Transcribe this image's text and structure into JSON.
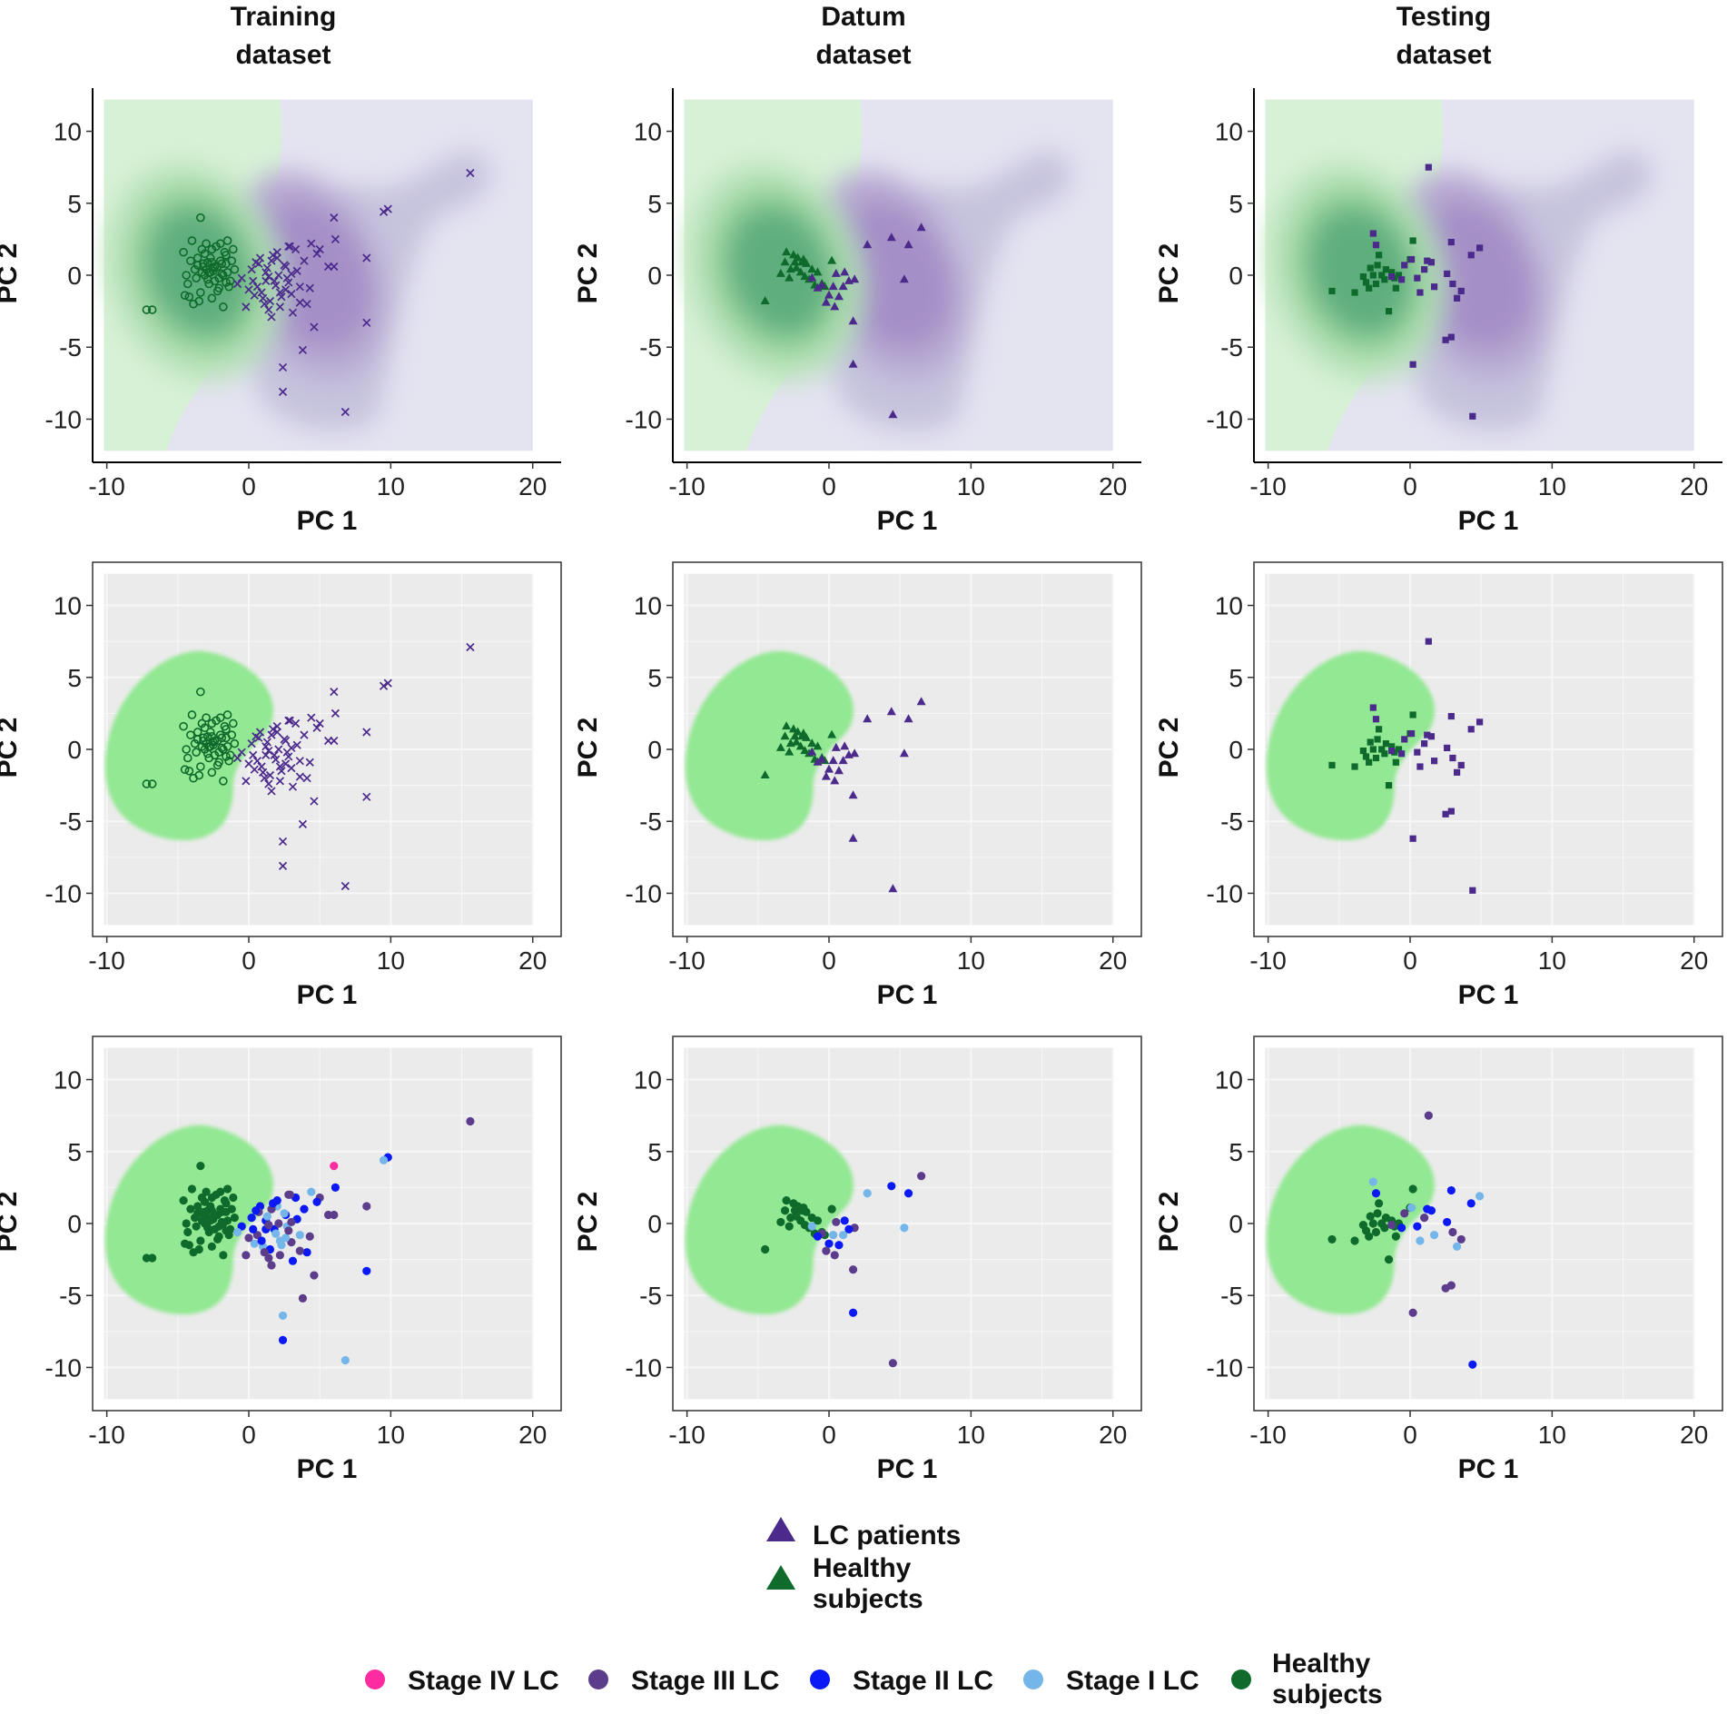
{
  "figure": {
    "columns": [
      "Training",
      "Datum",
      "Testing"
    ],
    "column_subtitle": "dataset",
    "xlabel": "PC 1",
    "ylabel": "PC 2"
  },
  "legend1": {
    "items": [
      {
        "label": "LC patients",
        "color": "#4b2a8c",
        "shape": "triangle"
      },
      {
        "label_lines": [
          "Healthy",
          "subjects"
        ],
        "color": "#0f6b2c",
        "shape": "triangle"
      }
    ]
  },
  "legend2": {
    "items": [
      {
        "label": "Stage IV LC",
        "color": "#ff2ca0"
      },
      {
        "label": "Stage III LC",
        "color": "#5b3d8c"
      },
      {
        "label": "Stage II LC",
        "color": "#0a19f5"
      },
      {
        "label": "Stage I LC",
        "color": "#74b6ea"
      },
      {
        "label_lines": [
          "Healthy",
          "subjects"
        ],
        "color": "#0f6b2c"
      }
    ]
  },
  "colors": {
    "healthy": "#0f6b2c",
    "lc": "#4b2a8c",
    "region_green": "#93e893",
    "region_purple": "#e2e0ee",
    "panel_bg": "#ebebeb"
  },
  "chart_data": [
    {
      "type": "scatter",
      "dataset": "Training",
      "title": "Training dataset",
      "xlabel": "PC 1",
      "ylabel": "PC 2",
      "xlim": [
        -11,
        22
      ],
      "ylim": [
        -13,
        13
      ],
      "xticks": [
        -10,
        0,
        10,
        20
      ],
      "yticks": [
        10,
        5,
        0,
        -5,
        -10
      ],
      "series": [
        {
          "name": "Healthy subjects",
          "marker": "open-circle",
          "x": [
            -7.2,
            -6.8,
            -4.6,
            -4.3,
            -4.0,
            -3.8,
            -3.6,
            -3.4,
            -3.2,
            -3.0,
            -2.8,
            -2.6,
            -2.4,
            -2.2,
            -2.0,
            -1.8,
            -1.6,
            -1.4,
            -1.2,
            -1.0,
            -4.4,
            -4.1,
            -3.7,
            -3.3,
            -3.1,
            -2.9,
            -2.7,
            -2.5,
            -2.3,
            -2.1,
            -1.9,
            -1.7,
            -1.5,
            -1.3,
            -3.5,
            -2.6,
            -2.2,
            -1.8,
            -1.5,
            -4.2,
            -3.9,
            -3.2,
            -2.8,
            -2.4,
            -2.0,
            -1.6,
            -3.4,
            -3.0,
            -2.6,
            -2.9,
            -3.3,
            -2.5,
            -1.9,
            -1.1,
            -4.5,
            -3.6,
            -2.7,
            -2.1,
            -1.6,
            -3.1
          ],
          "y": [
            -2.4,
            -2.4,
            1.6,
            -0.6,
            2.4,
            0.4,
            1.2,
            -1.2,
            0.8,
            2.2,
            0.2,
            1.8,
            -0.4,
            0.6,
            2.2,
            0.0,
            1.4,
            -0.8,
            1.0,
            0.4,
            0.0,
            1.0,
            -0.2,
            1.8,
            0.0,
            0.9,
            1.2,
            0.3,
            2.0,
            -0.2,
            0.8,
            1.6,
            0.2,
            -0.4,
            -1.8,
            -1.6,
            -1.1,
            -2.2,
            2.4,
            -1.5,
            -2.0,
            0.6,
            -0.6,
            0.6,
            1.0,
            0.8,
            4.0,
            0.4,
            0.9,
            -0.3,
            0.2,
            0.5,
            0.1,
            1.8,
            -1.4,
            0.7,
            0.2,
            -0.9,
            -0.5,
            1.5
          ]
        },
        {
          "name": "LC patients",
          "marker": "cross",
          "x": [
            15.6,
            9.8,
            9.5,
            8.3,
            8.3,
            6.8,
            6.0,
            6.0,
            5.0,
            4.8,
            4.4,
            4.1,
            3.8,
            3.6,
            3.3,
            3.0,
            2.8,
            2.6,
            2.4,
            2.4,
            2.2,
            2.0,
            1.8,
            1.6,
            1.4,
            1.2,
            1.0,
            0.8,
            0.6,
            0.4,
            0.2,
            0.0,
            -0.2,
            -0.5,
            -0.8,
            1.5,
            2.1,
            2.6,
            3.1,
            4.6,
            5.6,
            6.1,
            2.3,
            1.2,
            0.7,
            1.9,
            3.4,
            2.9,
            1.6,
            0.9,
            2.7,
            3.9,
            1.1,
            2.5,
            0.3,
            4.3,
            3.6,
            1.7,
            2.2,
            0.5,
            3.0,
            1.3,
            2.0,
            2.8,
            1.4
          ],
          "y": [
            7.1,
            4.6,
            4.4,
            -3.3,
            1.2,
            -9.5,
            4.0,
            0.6,
            1.8,
            1.5,
            2.2,
            -2.0,
            -5.2,
            -0.8,
            1.8,
            -1.3,
            2.0,
            0.6,
            -6.4,
            -8.1,
            -2.2,
            1.2,
            -0.4,
            1.0,
            -2.4,
            0.2,
            -1.6,
            1.2,
            -0.8,
            -1.4,
            0.4,
            -1.0,
            -2.2,
            -0.2,
            -0.6,
            -1.8,
            0.0,
            -1.0,
            -2.6,
            -3.6,
            0.6,
            2.5,
            -1.5,
            -0.4,
            0.8,
            -0.7,
            0.3,
            2.0,
            -2.9,
            -1.2,
            -0.2,
            1.0,
            -2.0,
            0.7,
            -0.4,
            -0.9,
            -1.9,
            1.4,
            -1.2,
            0.9,
            0.1,
            0.5,
            1.6,
            -0.5,
            -0.1
          ]
        }
      ]
    },
    {
      "type": "scatter",
      "dataset": "Datum",
      "title": "Datum dataset",
      "xlabel": "PC 1",
      "ylabel": "PC 2",
      "xlim": [
        -11,
        22
      ],
      "ylim": [
        -13,
        13
      ],
      "xticks": [
        -10,
        0,
        10,
        20
      ],
      "yticks": [
        10,
        5,
        0,
        -5,
        -10
      ],
      "series": [
        {
          "name": "Healthy subjects",
          "marker": "triangle",
          "x": [
            -4.5,
            -3.4,
            -3.1,
            -3.0,
            -2.7,
            -2.5,
            -2.4,
            -2.2,
            -2.0,
            -1.9,
            -1.7,
            -1.6,
            -1.4,
            -1.2,
            -1.0,
            -0.8,
            -0.5,
            -0.3,
            0.2,
            -2.8,
            -2.3,
            -1.8
          ],
          "y": [
            -1.8,
            0.1,
            0.9,
            1.6,
            0.4,
            1.4,
            0.9,
            1.2,
            0.2,
            0.9,
            -0.1,
            0.8,
            -0.3,
            0.4,
            -0.7,
            0.2,
            -0.6,
            -0.8,
            1.0,
            -0.2,
            0.5,
            1.1
          ]
        },
        {
          "name": "LC patients",
          "marker": "triangle",
          "x": [
            6.5,
            5.6,
            5.3,
            4.4,
            4.5,
            2.7,
            1.7,
            1.7,
            1.8,
            1.4,
            1.0,
            0.7,
            0.5,
            0.3,
            0.0,
            -0.2,
            -0.5,
            -0.8,
            -1.2,
            1.1,
            0.4
          ],
          "y": [
            3.3,
            2.1,
            -0.3,
            2.6,
            -9.7,
            2.1,
            -6.2,
            -3.2,
            -0.3,
            -0.4,
            -0.8,
            -1.5,
            0.1,
            -0.8,
            -1.4,
            -1.9,
            -0.7,
            -0.9,
            -0.2,
            0.2,
            -2.2
          ]
        }
      ]
    },
    {
      "type": "scatter",
      "dataset": "Testing",
      "title": "Testing dataset",
      "xlabel": "PC 1",
      "ylabel": "PC 2",
      "xlim": [
        -11,
        22
      ],
      "ylim": [
        -13,
        13
      ],
      "xticks": [
        -10,
        0,
        10,
        20
      ],
      "yticks": [
        10,
        5,
        0,
        -5,
        -10
      ],
      "series": [
        {
          "name": "Healthy subjects",
          "marker": "square",
          "x": [
            -5.5,
            -3.9,
            -3.3,
            -3.1,
            -2.8,
            -2.6,
            -2.4,
            -2.2,
            -2.0,
            -1.8,
            -1.5,
            -1.3,
            -1.0,
            -0.8,
            0.0,
            0.2,
            -2.3,
            -1.7,
            -1.1,
            -2.9
          ],
          "y": [
            -1.1,
            -1.2,
            -0.1,
            -0.5,
            0.5,
            0.0,
            -0.6,
            1.4,
            0.0,
            -0.3,
            -2.5,
            0.2,
            -0.9,
            0.0,
            1.1,
            2.4,
            0.7,
            0.4,
            -0.2,
            -0.9
          ]
        },
        {
          "name": "LC patients",
          "marker": "square",
          "x": [
            1.3,
            4.4,
            4.9,
            4.3,
            3.6,
            3.3,
            2.9,
            2.5,
            2.9,
            2.6,
            1.7,
            1.5,
            1.0,
            0.7,
            0.5,
            0.2,
            -0.4,
            -0.6,
            0.1,
            1.2,
            3.0,
            -2.6,
            -2.4,
            -1.3
          ],
          "y": [
            7.5,
            -9.8,
            1.9,
            1.4,
            -1.1,
            -1.6,
            2.3,
            -4.5,
            -4.3,
            0.1,
            -0.8,
            0.9,
            0.4,
            -1.2,
            -0.2,
            -6.2,
            0.7,
            -0.3,
            1.1,
            1.0,
            -0.6,
            2.9,
            2.1,
            -0.1
          ]
        }
      ]
    }
  ]
}
